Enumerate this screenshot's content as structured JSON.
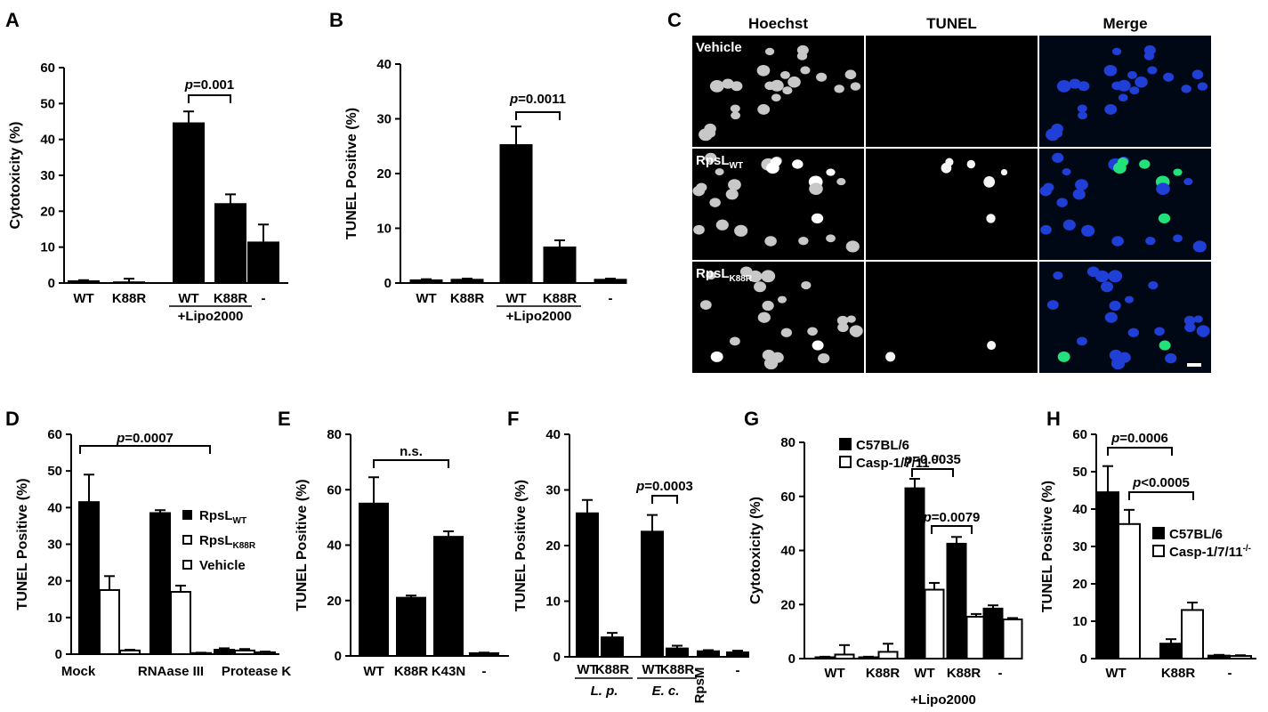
{
  "panel_labels": [
    "A",
    "B",
    "C",
    "D",
    "E",
    "F",
    "G",
    "H"
  ],
  "colors": {
    "filled": "#000000",
    "open": "#ffffff",
    "axis": "#000000"
  },
  "microscopy": {
    "columns": [
      "Hoechst",
      "TUNEL",
      "Merge"
    ],
    "rows": [
      {
        "label": "Vehicle",
        "sub": ""
      },
      {
        "label": "RpsL",
        "sub": "WT"
      },
      {
        "label": "RpsL",
        "sub": "K88R"
      }
    ]
  },
  "chart_data": [
    {
      "panel": "A",
      "type": "bar",
      "ylabel": "Cytotoxicity (%)",
      "ylim": [
        0,
        60
      ],
      "yticks": [
        0,
        10,
        20,
        30,
        40,
        50,
        60
      ],
      "categories": [
        "WT",
        "K88R",
        "WT",
        "K88R",
        "-"
      ],
      "group_label": "+Lipo2000",
      "series": [
        {
          "values": [
            0.5,
            0.2,
            44.5,
            22,
            11.3
          ],
          "errors": [
            0.3,
            1.0,
            3.3,
            2.7,
            5
          ]
        }
      ],
      "annotations": [
        {
          "text": "p=0.001",
          "p_italic": "p",
          "rest": "=0.001"
        }
      ]
    },
    {
      "panel": "B",
      "type": "bar",
      "ylabel": "TUNEL Positive (%)",
      "ylim": [
        0,
        40
      ],
      "yticks": [
        0,
        10,
        20,
        30,
        40
      ],
      "categories": [
        "WT",
        "K88R",
        "WT",
        "K88R",
        "-"
      ],
      "group_label": "+Lipo2000",
      "series": [
        {
          "values": [
            0.5,
            0.6,
            25.2,
            6.5,
            0.6
          ],
          "errors": [
            0.2,
            0.2,
            3.4,
            1.3,
            0.2
          ]
        }
      ],
      "annotations": [
        {
          "text": "p=0.0011",
          "p_italic": "p",
          "rest": "=0.0011"
        }
      ]
    },
    {
      "panel": "D",
      "type": "bar",
      "ylabel": "TUNEL Positive (%)",
      "ylim": [
        0,
        60
      ],
      "yticks": [
        0,
        10,
        20,
        30,
        40,
        50,
        60
      ],
      "categories": [
        "Mock",
        "RNAase III",
        "Protease K"
      ],
      "series": [
        {
          "name": "RpsL",
          "sub": "WT",
          "values": [
            41.5,
            38.5,
            1.2
          ],
          "errors": [
            7.5,
            0.8,
            0.4
          ]
        },
        {
          "name": "RpsL",
          "sub": "K88R",
          "values": [
            17.5,
            17,
            1
          ],
          "errors": [
            3.8,
            1.7,
            0.4
          ]
        },
        {
          "name": "Vehicle",
          "values": [
            1,
            0.3,
            0.5
          ],
          "errors": [
            0.2,
            0.1,
            0.2
          ]
        }
      ],
      "annotations": [
        {
          "text": "p=0.0007",
          "p_italic": "p",
          "rest": "=0.0007"
        }
      ]
    },
    {
      "panel": "E",
      "type": "bar",
      "ylabel": "TUNEL Positive (%)",
      "ylim": [
        0,
        80
      ],
      "yticks": [
        0,
        20,
        40,
        60,
        80
      ],
      "categories": [
        "WT",
        "K88R",
        "K43N",
        "-"
      ],
      "series": [
        {
          "values": [
            55,
            21,
            43,
            1
          ],
          "errors": [
            9.5,
            0.8,
            2,
            0.2
          ]
        }
      ],
      "annotations": [
        {
          "text": "n.s."
        }
      ]
    },
    {
      "panel": "F",
      "type": "bar",
      "ylabel": "TUNEL Positive (%)",
      "ylim": [
        0,
        40
      ],
      "yticks": [
        0,
        10,
        20,
        30,
        40
      ],
      "categories": [
        "WT",
        "K88R",
        "WT",
        "K88R",
        "RpsM",
        "-"
      ],
      "group_labels": [
        "L. p.",
        "E. c."
      ],
      "series": [
        {
          "values": [
            25.8,
            3.5,
            22.5,
            1.5,
            1,
            0.8
          ],
          "errors": [
            2.4,
            0.8,
            3,
            0.5,
            0.2,
            0.3
          ]
        }
      ],
      "annotations": [
        {
          "text": "p=0.0003",
          "p_italic": "p",
          "rest": "=0.0003"
        }
      ]
    },
    {
      "panel": "G",
      "type": "bar",
      "ylabel": "Cytotoxicity   (%)",
      "ylim": [
        0,
        80
      ],
      "yticks": [
        0,
        20,
        40,
        60,
        80
      ],
      "categories": [
        "WT",
        "K88R",
        "WT",
        "K88R",
        "-"
      ],
      "group_label": "+Lipo2000",
      "series": [
        {
          "name": "C57BL/6",
          "values": [
            0.5,
            0.5,
            63,
            42.5,
            18.5
          ],
          "errors": [
            0.2,
            0.2,
            3.5,
            2.5,
            1.2
          ]
        },
        {
          "name": "Casp-1/7/11",
          "sup": "-/-",
          "values": [
            1.5,
            2.5,
            25.5,
            15.5,
            14.5
          ],
          "errors": [
            3.5,
            3,
            2.5,
            1,
            0.5
          ]
        }
      ],
      "annotations": [
        {
          "text": "p=0.0035",
          "p_italic": "p",
          "rest": "=0.0035"
        },
        {
          "text": "p=0.0079",
          "p_italic": "p",
          "rest": "=0.0079"
        }
      ]
    },
    {
      "panel": "H",
      "type": "bar",
      "ylabel": "TUNEL Positive (%)",
      "ylim": [
        0,
        60
      ],
      "yticks": [
        0,
        10,
        20,
        30,
        40,
        50,
        60
      ],
      "categories": [
        "WT",
        "K88R",
        "-"
      ],
      "series": [
        {
          "name": "C57BL/6",
          "values": [
            44.5,
            4,
            0.8
          ],
          "errors": [
            7,
            1.2,
            0.2
          ]
        },
        {
          "name": "Casp-1/7/11",
          "sup": "-/-",
          "values": [
            36,
            13,
            0.7
          ],
          "errors": [
            3.8,
            2,
            0.2
          ]
        }
      ],
      "annotations": [
        {
          "text": "p=0.0006",
          "p_italic": "p",
          "rest": "=0.0006"
        },
        {
          "text": "p<0.0005",
          "p_italic": "p",
          "rest": "<0.0005"
        }
      ]
    }
  ]
}
